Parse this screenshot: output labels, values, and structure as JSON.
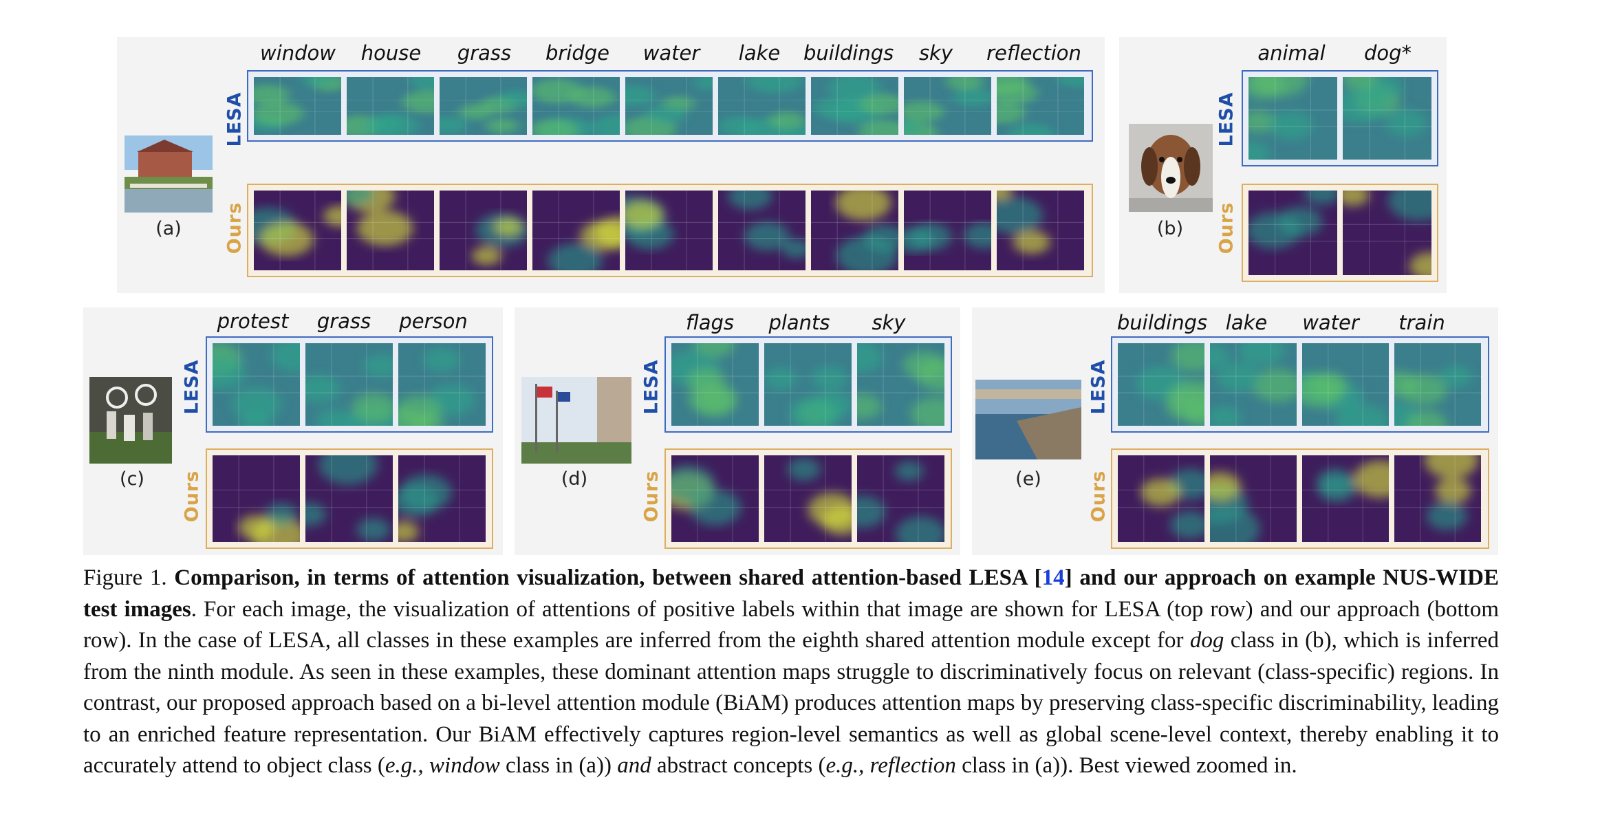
{
  "panels": {
    "a": {
      "label": "(a)",
      "classes": [
        "window",
        "house",
        "grass",
        "bridge",
        "water",
        "lake",
        "buildings",
        "sky",
        "reflection"
      ]
    },
    "b": {
      "label": "(b)",
      "classes": [
        "animal",
        "dog*"
      ]
    },
    "c": {
      "label": "(c)",
      "classes": [
        "protest",
        "grass",
        "person"
      ]
    },
    "d": {
      "label": "(d)",
      "classes": [
        "flags",
        "plants",
        "sky"
      ]
    },
    "e": {
      "label": "(e)",
      "classes": [
        "buildings",
        "lake",
        "water",
        "train"
      ]
    }
  },
  "row_labels": {
    "lesa": "LESA",
    "ours": "Ours"
  },
  "colors": {
    "lesa": "#3e6bc0",
    "ours": "#dcae61",
    "ref": "#1a3fd6"
  },
  "caption": {
    "prefix": "Figure 1. ",
    "bold1": "Comparison, in terms of attention visualization, between shared attention-based LESA [",
    "ref": "14",
    "bold2": "] and our approach on example NUS-WIDE test images",
    "t1": ". For each image, the visualization of attentions of positive labels within that image are shown for LESA (top row) and our approach (bottom row). In the case of LESA, all classes in these examples are inferred from the eighth shared attention module except for ",
    "i1": "dog",
    "t2": " class in (b), which is inferred from the ninth module. As seen in these examples, these dominant attention maps struggle to discriminatively focus on relevant (class-specific) regions. In contrast, our proposed approach based on a bi-level attention module (BiAM) produces attention maps by preserving class-specific discriminability, leading to an enriched feature representation. Our BiAM effectively captures region-level semantics as well as global scene-level context, thereby enabling it to accurately attend to object class (",
    "i2": "e.g.",
    "t3": ", ",
    "i3": "window",
    "t4": " class in (a)) ",
    "i4": "and",
    "t5": " abstract concepts (",
    "i5": "e.g.",
    "t6": ", ",
    "i6": "reflection",
    "t7": " class in (a)). Best viewed zoomed in."
  }
}
